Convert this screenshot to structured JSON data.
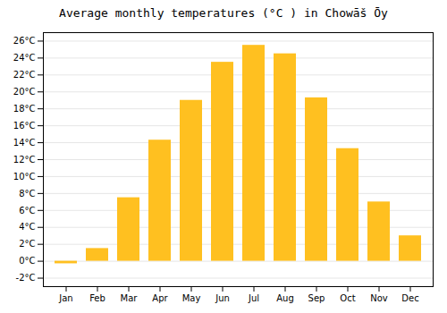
{
  "chart_data": {
    "type": "bar",
    "title": "Average monthly temperatures (°C ) in Chowāš Ōy",
    "categories": [
      "Jan",
      "Feb",
      "Mar",
      "Apr",
      "May",
      "Jun",
      "Jul",
      "Aug",
      "Sep",
      "Oct",
      "Nov",
      "Dec"
    ],
    "values": [
      -0.3,
      1.5,
      7.5,
      14.3,
      19.0,
      23.5,
      25.5,
      24.5,
      19.3,
      13.3,
      7.0,
      3.0
    ],
    "color": "#FFC020",
    "ylim": [
      -3,
      27
    ],
    "yticks": [
      {
        "value": -2,
        "label": "-2°C"
      },
      {
        "value": 0,
        "label": "0°C"
      },
      {
        "value": 2,
        "label": "2°C"
      },
      {
        "value": 4,
        "label": "4°C"
      },
      {
        "value": 6,
        "label": "6°C"
      },
      {
        "value": 8,
        "label": "8°C"
      },
      {
        "value": 10,
        "label": "10°C"
      },
      {
        "value": 12,
        "label": "12°C"
      },
      {
        "value": 14,
        "label": "14°C"
      },
      {
        "value": 16,
        "label": "16°C"
      },
      {
        "value": 18,
        "label": "18°C"
      },
      {
        "value": 20,
        "label": "20°C"
      },
      {
        "value": 22,
        "label": "22°C"
      },
      {
        "value": 24,
        "label": "24°C"
      },
      {
        "value": 26,
        "label": "26°C"
      }
    ],
    "grid": true
  }
}
